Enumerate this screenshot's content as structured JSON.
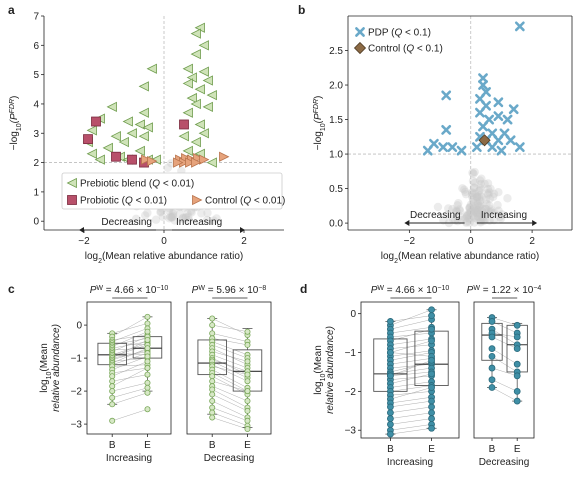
{
  "panels": {
    "a": {
      "letter": "a",
      "ylabel_parts": [
        "−log",
        "10",
        "(P",
        "FDR",
        ")"
      ],
      "xlabel_parts": [
        "log",
        "2",
        "(Mean relative abundance ratio)"
      ],
      "legend": [
        {
          "marker": "triangle-left",
          "color": "#cfe3b8",
          "stroke": "#6e9c4d",
          "text_parts": [
            "Prebiotic blend (",
            "Q",
            " < 0.01)"
          ]
        },
        {
          "marker": "square",
          "color": "#b8506a",
          "stroke": "#7a2a3e",
          "text_parts": [
            "Probiotic (",
            "Q",
            " < 0.01)"
          ]
        },
        {
          "marker": "triangle-right",
          "color": "#e6a37c",
          "stroke": "#b8734c",
          "text_parts": [
            "Control (",
            "Q",
            " < 0.01)"
          ]
        }
      ],
      "arrow_labels": {
        "left": "Decreasing",
        "right": "Increasing"
      }
    },
    "b": {
      "letter": "b",
      "ylabel_parts": [
        "−log",
        "10",
        "(P",
        "FDR",
        ")"
      ],
      "xlabel_parts": [
        "log",
        "2",
        "(Mean relative abundance ratio)"
      ],
      "legend": [
        {
          "marker": "x",
          "color": "#6aa9c9",
          "text_parts": [
            "PDP (",
            "Q",
            " < 0.1)"
          ]
        },
        {
          "marker": "diamond",
          "color": "#8c6a45",
          "text_parts": [
            "Control (",
            "Q",
            " < 0.1)"
          ]
        }
      ],
      "arrow_labels": {
        "left": "Decreasing",
        "right": "Increasing"
      }
    },
    "c": {
      "letter": "c",
      "ylabel_lines": [
        "log10(Mean",
        "relative abundance)"
      ],
      "ylabel_parts_line1": [
        "log",
        "10",
        "(Mean"
      ],
      "ylabel_line2": "relative abundance)",
      "subpanels": [
        {
          "group_label": "Increasing",
          "pvalue_parts": [
            "P",
            "W",
            " = 4.66 × 10",
            "−10"
          ]
        },
        {
          "group_label": "Decreasing",
          "pvalue_parts": [
            "P",
            "W",
            " = 5.96 × 10",
            "−8"
          ]
        }
      ],
      "x_categories": [
        "B",
        "E"
      ]
    },
    "d": {
      "letter": "d",
      "ylabel_parts_line1": [
        "log",
        "10",
        "(Mean"
      ],
      "ylabel_line2": "relative abundance)",
      "subpanels": [
        {
          "group_label": "Increasing",
          "pvalue_parts": [
            "P",
            "W",
            " = 4.66 × 10",
            "−10"
          ]
        },
        {
          "group_label": "Decreasing",
          "pvalue_parts": [
            "P",
            "W",
            " = 1.22 × 10",
            "−4"
          ]
        }
      ],
      "x_categories": [
        "B",
        "E"
      ]
    }
  },
  "chart_data": [
    {
      "panel": "a",
      "type": "scatter",
      "xlim": [
        -3,
        3
      ],
      "ylim": [
        -0.3,
        7
      ],
      "xticks": [
        -2,
        0,
        2
      ],
      "yticks": [
        0,
        1,
        2,
        3,
        4,
        5,
        6,
        7
      ],
      "threshold_y": 2.0,
      "threshold_x": 0,
      "series": [
        {
          "name": "Prebiotic blend",
          "marker": "triangle-left",
          "points": [
            [
              0.9,
              6.6
            ],
            [
              0.8,
              6.4
            ],
            [
              1.0,
              6.0
            ],
            [
              0.8,
              5.7
            ],
            [
              0.6,
              5.2
            ],
            [
              -0.3,
              5.2
            ],
            [
              1.0,
              5.1
            ],
            [
              0.7,
              4.9
            ],
            [
              1.1,
              4.8
            ],
            [
              0.6,
              4.7
            ],
            [
              0.9,
              4.5
            ],
            [
              -0.5,
              4.6
            ],
            [
              1.2,
              4.3
            ],
            [
              0.7,
              4.2
            ],
            [
              0.8,
              4.0
            ],
            [
              1.1,
              3.9
            ],
            [
              -1.3,
              3.9
            ],
            [
              -0.5,
              3.7
            ],
            [
              0.6,
              3.7
            ],
            [
              -1.6,
              3.5
            ],
            [
              -0.9,
              3.4
            ],
            [
              -0.6,
              3.3
            ],
            [
              -0.4,
              3.2
            ],
            [
              0.9,
              3.3
            ],
            [
              -1.8,
              3.1
            ],
            [
              -0.8,
              3.0
            ],
            [
              1.0,
              3.0
            ],
            [
              -1.2,
              2.9
            ],
            [
              -0.5,
              2.9
            ],
            [
              0.5,
              2.9
            ],
            [
              -1.9,
              2.7
            ],
            [
              -1.0,
              2.7
            ],
            [
              0.8,
              2.7
            ],
            [
              -1.4,
              2.5
            ],
            [
              -0.6,
              2.4
            ],
            [
              0.6,
              2.4
            ],
            [
              -1.8,
              2.3
            ],
            [
              -1.1,
              2.2
            ],
            [
              0.9,
              2.3
            ],
            [
              -0.9,
              2.1
            ],
            [
              -0.4,
              2.1
            ],
            [
              0.5,
              2.1
            ],
            [
              -1.6,
              2.1
            ],
            [
              1.2,
              2.0
            ],
            [
              -0.2,
              2.1
            ]
          ]
        },
        {
          "name": "Probiotic",
          "marker": "square",
          "points": [
            [
              -1.9,
              2.8
            ],
            [
              -1.7,
              3.4
            ],
            [
              -1.2,
              2.2
            ],
            [
              -0.8,
              2.1
            ],
            [
              0.5,
              3.3
            ],
            [
              -0.5,
              2.0
            ]
          ]
        },
        {
          "name": "Control",
          "marker": "triangle-right",
          "points": [
            [
              0.4,
              2.1
            ],
            [
              0.55,
              2.15
            ],
            [
              0.7,
              2.1
            ],
            [
              0.85,
              2.15
            ],
            [
              1.0,
              2.1
            ],
            [
              0.5,
              2.0
            ],
            [
              0.65,
              2.0
            ],
            [
              0.8,
              2.0
            ],
            [
              1.5,
              2.2
            ],
            [
              -0.45,
              2.1
            ],
            [
              -0.3,
              2.05
            ],
            [
              0.35,
              2.0
            ]
          ]
        }
      ]
    },
    {
      "panel": "b",
      "type": "scatter",
      "xlim": [
        -4,
        3.3
      ],
      "ylim": [
        -0.1,
        3.0
      ],
      "xticks": [
        -2,
        0,
        2
      ],
      "yticks": [
        0,
        0.5,
        1.0,
        1.5,
        2.0,
        2.5
      ],
      "threshold_y": 1.0,
      "threshold_x": 0,
      "series": [
        {
          "name": "PDP",
          "marker": "x",
          "points": [
            [
              1.6,
              2.85
            ],
            [
              0.4,
              2.1
            ],
            [
              0.4,
              2.0
            ],
            [
              0.5,
              1.9
            ],
            [
              0.3,
              1.8
            ],
            [
              -0.8,
              1.85
            ],
            [
              0.5,
              1.7
            ],
            [
              0.9,
              1.75
            ],
            [
              1.4,
              1.65
            ],
            [
              0.3,
              1.6
            ],
            [
              0.6,
              1.5
            ],
            [
              0.9,
              1.55
            ],
            [
              1.2,
              1.5
            ],
            [
              0.4,
              1.4
            ],
            [
              -0.8,
              1.35
            ],
            [
              0.7,
              1.3
            ],
            [
              1.1,
              1.3
            ],
            [
              0.3,
              1.25
            ],
            [
              0.5,
              1.2
            ],
            [
              0.9,
              1.2
            ],
            [
              1.3,
              1.2
            ],
            [
              -1.2,
              1.15
            ],
            [
              -0.9,
              1.1
            ],
            [
              -0.6,
              1.1
            ],
            [
              0.2,
              1.1
            ],
            [
              0.7,
              1.1
            ],
            [
              1.6,
              1.1
            ],
            [
              -1.4,
              1.05
            ],
            [
              -0.3,
              1.05
            ],
            [
              1.0,
              1.05
            ]
          ]
        },
        {
          "name": "Control",
          "marker": "diamond",
          "points": [
            [
              0.45,
              1.2
            ]
          ]
        }
      ]
    },
    {
      "panel": "c",
      "type": "box",
      "subplots": [
        {
          "group": "Increasing",
          "ylim": [
            -3.3,
            0.7
          ],
          "yticks": [
            0,
            -1,
            -2,
            -3
          ],
          "pairs": [
            [
              -0.25,
              0.05
            ],
            [
              -0.35,
              0.25
            ],
            [
              -0.45,
              -0.3
            ],
            [
              -0.5,
              -0.1
            ],
            [
              -0.55,
              -0.6
            ],
            [
              -0.6,
              -0.4
            ],
            [
              -0.65,
              -0.2
            ],
            [
              -0.7,
              -0.5
            ],
            [
              -0.75,
              -0.7
            ],
            [
              -0.8,
              -0.35
            ],
            [
              -0.85,
              -0.9
            ],
            [
              -0.9,
              -0.55
            ],
            [
              -0.95,
              -0.6
            ],
            [
              -1.0,
              -0.8
            ],
            [
              -1.0,
              -0.45
            ],
            [
              -1.05,
              -0.75
            ],
            [
              -1.1,
              -1.0
            ],
            [
              -1.15,
              -0.7
            ],
            [
              -1.2,
              -0.85
            ],
            [
              -1.25,
              -1.2
            ],
            [
              -1.35,
              -0.95
            ],
            [
              -1.45,
              -1.3
            ],
            [
              -1.55,
              -1.1
            ],
            [
              -1.7,
              -1.5
            ],
            [
              -1.85,
              -1.3
            ],
            [
              -2.0,
              -1.75
            ],
            [
              -2.2,
              -1.9
            ],
            [
              -2.4,
              -2.05
            ],
            [
              -2.9,
              -2.55
            ]
          ],
          "box_B": {
            "q1": -1.2,
            "median": -0.9,
            "q3": -0.55,
            "whisker_low": -2.4,
            "whisker_high": -0.25
          },
          "box_E": {
            "q1": -1.0,
            "median": -0.7,
            "q3": -0.35,
            "whisker_low": -2.0,
            "whisker_high": 0.25
          }
        },
        {
          "group": "Decreasing",
          "ylim": [
            -3.3,
            0.7
          ],
          "yticks": [
            0,
            -1,
            -2,
            -3
          ],
          "pairs": [
            [
              0.2,
              -0.3
            ],
            [
              0.0,
              -0.2
            ],
            [
              -0.25,
              -0.5
            ],
            [
              -0.4,
              -0.6
            ],
            [
              -0.5,
              -0.9
            ],
            [
              -0.6,
              -1.0
            ],
            [
              -0.7,
              -1.2
            ],
            [
              -0.8,
              -1.1
            ],
            [
              -0.9,
              -1.3
            ],
            [
              -1.0,
              -1.5
            ],
            [
              -1.05,
              -1.4
            ],
            [
              -1.1,
              -1.6
            ],
            [
              -1.2,
              -1.7
            ],
            [
              -1.25,
              -1.5
            ],
            [
              -1.35,
              -1.9
            ],
            [
              -1.45,
              -2.0
            ],
            [
              -1.55,
              -2.1
            ],
            [
              -1.7,
              -2.0
            ],
            [
              -1.85,
              -2.3
            ],
            [
              -1.95,
              -2.5
            ],
            [
              -2.1,
              -2.6
            ],
            [
              -2.3,
              -2.8
            ],
            [
              -2.5,
              -2.9
            ],
            [
              -2.65,
              -3.05
            ],
            [
              -2.8,
              -3.15
            ]
          ],
          "box_B": {
            "q1": -1.5,
            "median": -1.15,
            "q3": -0.45,
            "whisker_low": -2.7,
            "whisker_high": 0.2
          },
          "box_E": {
            "q1": -2.0,
            "median": -1.4,
            "q3": -0.75,
            "whisker_low": -3.1,
            "whisker_high": -0.1
          }
        }
      ]
    },
    {
      "panel": "d",
      "type": "box",
      "subplots": [
        {
          "group": "Increasing",
          "ylim": [
            -3.2,
            0.3
          ],
          "yticks": [
            0,
            -1,
            -2,
            -3
          ],
          "pairs": [
            [
              -0.3,
              0.1
            ],
            [
              -0.4,
              -0.15
            ],
            [
              -0.5,
              -0.35
            ],
            [
              -0.6,
              -0.5
            ],
            [
              -0.7,
              -0.4
            ],
            [
              -0.8,
              -0.65
            ],
            [
              -0.9,
              -0.8
            ],
            [
              -1.0,
              -0.7
            ],
            [
              -1.1,
              -0.95
            ],
            [
              -1.2,
              -1.0
            ],
            [
              -1.3,
              -1.15
            ],
            [
              -1.4,
              -1.3
            ],
            [
              -1.5,
              -1.25
            ],
            [
              -1.55,
              -1.4
            ],
            [
              -1.6,
              -1.5
            ],
            [
              -1.7,
              -1.6
            ],
            [
              -1.8,
              -1.55
            ],
            [
              -1.9,
              -1.75
            ],
            [
              -2.0,
              -1.85
            ],
            [
              -2.1,
              -2.0
            ],
            [
              -2.2,
              -1.9
            ],
            [
              -2.3,
              -2.15
            ],
            [
              -2.4,
              -2.25
            ],
            [
              -2.55,
              -2.4
            ],
            [
              -2.7,
              -2.55
            ],
            [
              -2.85,
              -2.7
            ],
            [
              -3.0,
              -2.85
            ],
            [
              -3.1,
              -2.95
            ],
            [
              -0.2,
              -0.05
            ],
            [
              -1.0,
              -1.1
            ],
            [
              -1.6,
              -1.2
            ]
          ],
          "box_B": {
            "q1": -2.0,
            "median": -1.55,
            "q3": -0.65,
            "whisker_low": -3.1,
            "whisker_high": -0.2
          },
          "box_E": {
            "q1": -1.85,
            "median": -1.3,
            "q3": -0.45,
            "whisker_low": -2.95,
            "whisker_high": 0.1
          }
        },
        {
          "group": "Decreasing",
          "ylim": [
            -3.2,
            0.3
          ],
          "yticks": [
            0,
            -1,
            -2,
            -3
          ],
          "pairs": [
            [
              -0.1,
              -0.3
            ],
            [
              -0.2,
              -0.5
            ],
            [
              -0.4,
              -0.8
            ],
            [
              -0.5,
              -0.6
            ],
            [
              -0.6,
              -0.9
            ],
            [
              -0.9,
              -1.3
            ],
            [
              -1.1,
              -1.5
            ],
            [
              -1.4,
              -1.6
            ],
            [
              -1.7,
              -2.0
            ],
            [
              -1.9,
              -2.25
            ]
          ],
          "box_B": {
            "q1": -1.2,
            "median": -0.55,
            "q3": -0.25,
            "whisker_low": -1.9,
            "whisker_high": -0.1
          },
          "box_E": {
            "q1": -1.5,
            "median": -0.8,
            "q3": -0.3,
            "whisker_low": -2.25,
            "whisker_high": -0.25
          }
        }
      ]
    }
  ]
}
